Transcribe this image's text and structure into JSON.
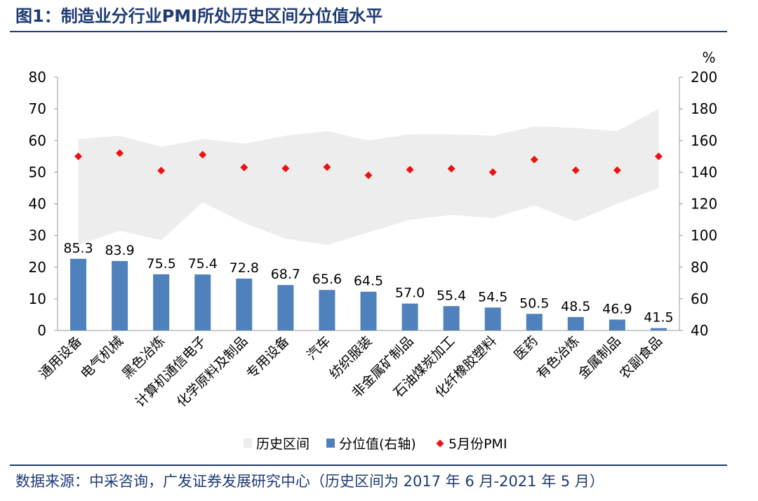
{
  "title": "图1：制造业分行业PMI所处历史区间分位值水平",
  "source": "数据来源：中采咨询，广发证券发展研究中心（历史区间为 2017 年 6 月-2021 年 5 月）",
  "colors": {
    "band": "#ededed",
    "bar": "#4f81bd",
    "marker": "#ee1111",
    "title": "#1f3b73"
  },
  "chart_data": {
    "type": "bar",
    "categories": [
      "通用设备",
      "电气机械",
      "黑色冶炼",
      "计算机通信电子",
      "化学原料及制品",
      "专用设备",
      "汽车",
      "纺织服装",
      "非金属矿制品",
      "石油煤炭加工",
      "化纤橡胶塑料",
      "医药",
      "有色冶炼",
      "金属制品",
      "农副食品"
    ],
    "series": [
      {
        "name": "历史区间",
        "type": "area-band",
        "axis": "right",
        "low": [
          94,
          103,
          97,
          121,
          108,
          98,
          94,
          102,
          110,
          113,
          111,
          119,
          109,
          120,
          130
        ],
        "high": [
          161,
          163,
          156,
          161,
          158,
          163,
          166,
          160,
          164,
          164,
          163,
          169,
          168,
          166,
          180
        ]
      },
      {
        "name": "分位值(右轴)",
        "type": "bar",
        "axis": "right",
        "values": [
          85.3,
          83.9,
          75.5,
          75.4,
          72.8,
          68.7,
          65.6,
          64.5,
          57.0,
          55.4,
          54.5,
          50.5,
          48.5,
          46.9,
          41.5
        ],
        "labels": [
          "85.3",
          "83.9",
          "75.5",
          "75.4",
          "72.8",
          "68.7",
          "65.6",
          "64.5",
          "57.0",
          "55.4",
          "54.5",
          "50.5",
          "48.5",
          "46.9",
          "41.5"
        ]
      },
      {
        "name": "5月份PMI",
        "type": "scatter",
        "axis": "left",
        "values": [
          55.0,
          56.0,
          50.5,
          55.5,
          51.5,
          51.2,
          51.6,
          49.0,
          50.8,
          51.1,
          50.0,
          54.0,
          50.6,
          50.6,
          55.0
        ]
      }
    ],
    "left_axis": {
      "min": 0,
      "max": 80,
      "ticks": [
        "0",
        "10",
        "20",
        "30",
        "40",
        "50",
        "60",
        "70",
        "80"
      ]
    },
    "right_axis": {
      "unit": "%",
      "min": 40,
      "max": 200,
      "ticks": [
        "40",
        "60",
        "80",
        "100",
        "120",
        "140",
        "160",
        "180",
        "200"
      ]
    },
    "legend": [
      "历史区间",
      "分位值(右轴)",
      "5月份PMI"
    ],
    "legend_position": "bottom"
  }
}
